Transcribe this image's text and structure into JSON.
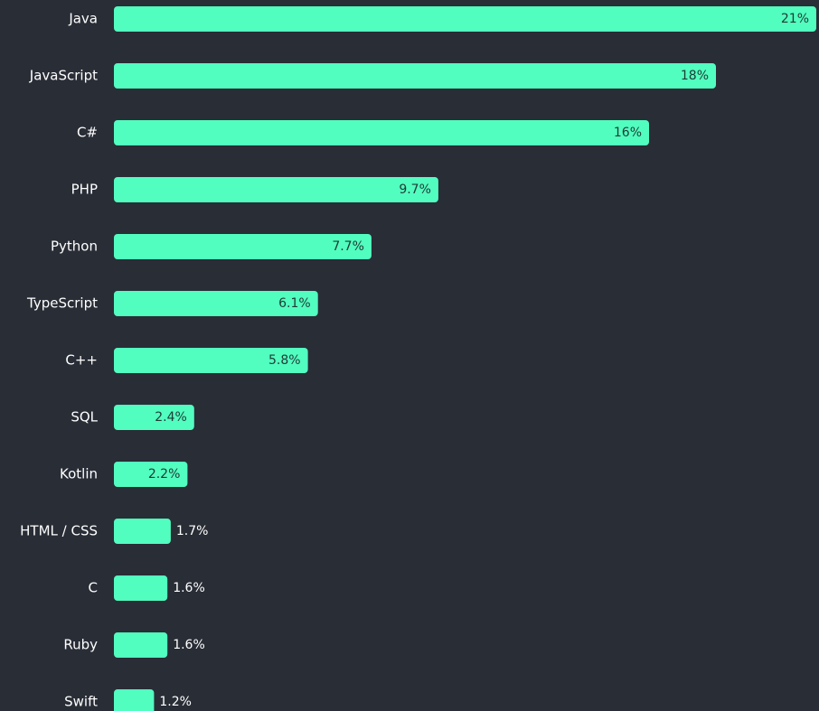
{
  "chart_data": {
    "type": "bar",
    "orientation": "horizontal",
    "color": "#52fdc0",
    "categories": [
      "Java",
      "JavaScript",
      "C#",
      "PHP",
      "Python",
      "TypeScript",
      "C++",
      "SQL",
      "Kotlin",
      "HTML / CSS",
      "C",
      "Ruby",
      "Swift"
    ],
    "values": [
      21,
      18,
      16,
      9.7,
      7.7,
      6.1,
      5.8,
      2.4,
      2.2,
      1.7,
      1.6,
      1.6,
      1.2
    ],
    "value_labels": [
      "21%",
      "18%",
      "16%",
      "9.7%",
      "7.7%",
      "6.1%",
      "5.8%",
      "2.4%",
      "2.2%",
      "1.7%",
      "1.6%",
      "1.6%",
      "1.2%"
    ]
  }
}
